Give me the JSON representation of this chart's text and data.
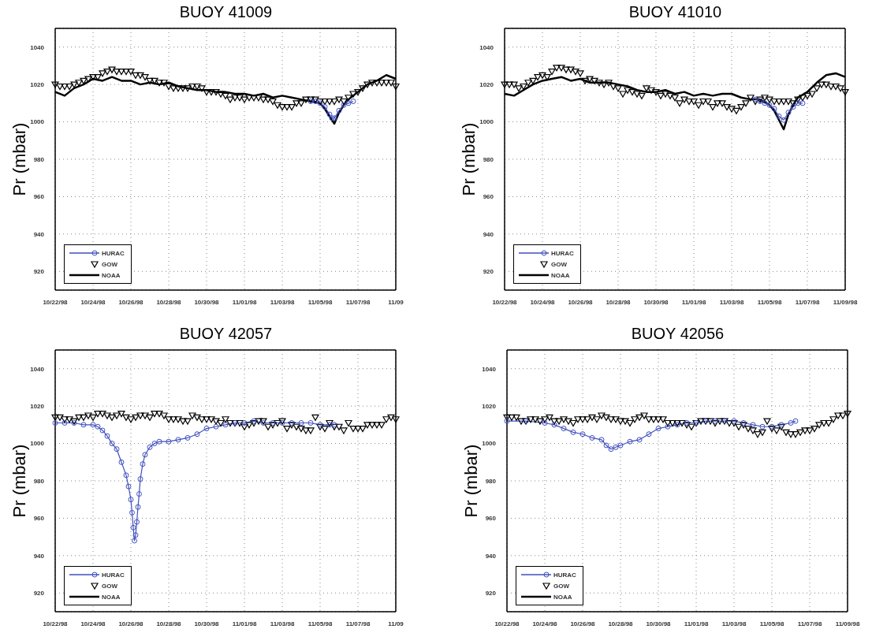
{
  "chart_data": [
    {
      "type": "line",
      "title": "BUOY 41009",
      "ylabel": "Pr (mbar)",
      "grid": true,
      "legend": "bottom left",
      "ylim": [
        910,
        1050
      ],
      "yticks": [
        920,
        940,
        960,
        980,
        1000,
        1020,
        1040
      ],
      "xlim": [
        "1998-10-22",
        "1998-11-09"
      ],
      "xticks": [
        {
          "value": "1998-10-22",
          "label": "10/22/98"
        },
        {
          "value": "1998-10-24",
          "label": "10/24/98"
        },
        {
          "value": "1998-10-26",
          "label": "10/26/98"
        },
        {
          "value": "1998-10-28",
          "label": "10/28/98"
        },
        {
          "value": "1998-10-30",
          "label": "10/30/98"
        },
        {
          "value": "1998-11-01",
          "label": "11/01/98"
        },
        {
          "value": "1998-11-03",
          "label": "11/03/98"
        },
        {
          "value": "1998-11-05",
          "label": "11/05/98"
        },
        {
          "value": "1998-11-07",
          "label": "11/07/98"
        },
        {
          "value": "1998-11-09",
          "label": "11/09"
        }
      ],
      "x": [
        "1998-10-22T00:00",
        "1998-10-22T06:00",
        "1998-10-22T12:00",
        "1998-10-22T18:00",
        "1998-10-23T00:00",
        "1998-10-23T06:00",
        "1998-10-23T12:00",
        "1998-10-23T18:00",
        "1998-10-24T00:00",
        "1998-10-24T06:00",
        "1998-10-24T12:00",
        "1998-10-24T18:00",
        "1998-10-25T00:00",
        "1998-10-25T06:00",
        "1998-10-25T12:00",
        "1998-10-25T18:00",
        "1998-10-26T00:00",
        "1998-10-26T06:00",
        "1998-10-26T12:00",
        "1998-10-26T18:00",
        "1998-10-27T00:00",
        "1998-10-27T06:00",
        "1998-10-27T12:00",
        "1998-10-27T18:00",
        "1998-10-28T00:00",
        "1998-10-28T06:00",
        "1998-10-28T12:00",
        "1998-10-28T18:00",
        "1998-10-29T00:00",
        "1998-10-29T06:00",
        "1998-10-29T12:00",
        "1998-10-29T18:00",
        "1998-10-30T00:00",
        "1998-10-30T06:00",
        "1998-10-30T12:00",
        "1998-10-30T18:00",
        "1998-10-31T00:00",
        "1998-10-31T06:00",
        "1998-10-31T12:00",
        "1998-10-31T18:00",
        "1998-11-01T00:00",
        "1998-11-01T06:00",
        "1998-11-01T12:00",
        "1998-11-01T18:00",
        "1998-11-02T00:00",
        "1998-11-02T06:00",
        "1998-11-02T12:00",
        "1998-11-02T18:00",
        "1998-11-03T00:00",
        "1998-11-03T06:00",
        "1998-11-03T12:00",
        "1998-11-03T18:00",
        "1998-11-04T00:00",
        "1998-11-04T06:00",
        "1998-11-04T12:00",
        "1998-11-04T18:00",
        "1998-11-05T00:00",
        "1998-11-05T06:00",
        "1998-11-05T12:00",
        "1998-11-05T18:00",
        "1998-11-06T00:00",
        "1998-11-06T06:00",
        "1998-11-06T12:00",
        "1998-11-06T18:00",
        "1998-11-07T00:00",
        "1998-11-07T06:00",
        "1998-11-07T12:00",
        "1998-11-07T18:00",
        "1998-11-08T00:00",
        "1998-11-08T06:00",
        "1998-11-08T12:00",
        "1998-11-08T18:00",
        "1998-11-09T00:00"
      ],
      "series": [
        {
          "name": "HURAC",
          "marker": "circle",
          "color": "#4050c0",
          "x": [
            "1998-11-04T12:00",
            "1998-11-04T18:00",
            "1998-11-05T00:00",
            "1998-11-05T06:00",
            "1998-11-05T12:00",
            "1998-11-05T15:00",
            "1998-11-05T18:00",
            "1998-11-06T00:00",
            "1998-11-06T06:00",
            "1998-11-06T12:00",
            "1998-11-06T18:00"
          ],
          "values": [
            1011,
            1011,
            1010,
            1008,
            1004,
            1002,
            1002,
            1006,
            1009,
            1010,
            1011
          ]
        },
        {
          "name": "GOW",
          "type": "scatter",
          "marker": "triangle",
          "color": "#000000",
          "values": [
            1020,
            1019,
            1019,
            1019,
            1020,
            1021,
            1022,
            1023,
            1024,
            1024,
            1026,
            1027,
            1028,
            1027,
            1027,
            1027,
            1027,
            1025,
            1025,
            1024,
            1022,
            1022,
            1021,
            1021,
            1019,
            1018,
            1018,
            1018,
            1018,
            1019,
            1019,
            1018,
            1016,
            1016,
            1016,
            1015,
            1014,
            1012,
            1013,
            1013,
            1012,
            1013,
            1013,
            1013,
            1012,
            1012,
            1011,
            1009,
            1008,
            1008,
            1008,
            1010,
            1010,
            1012,
            1012,
            1012,
            1011,
            1011,
            1011,
            1011,
            1012,
            1011,
            1013,
            1015,
            1016,
            1018,
            1020,
            1021,
            1021,
            1021,
            1021,
            1021,
            1019
          ]
        },
        {
          "name": "NOAA",
          "marker": "none",
          "color": "#000000",
          "x": [
            "1998-10-22T00:00",
            "1998-10-22T12:00",
            "1998-10-23T00:00",
            "1998-10-23T12:00",
            "1998-10-24T00:00",
            "1998-10-24T12:00",
            "1998-10-25T00:00",
            "1998-10-25T12:00",
            "1998-10-26T00:00",
            "1998-10-26T12:00",
            "1998-10-27T00:00",
            "1998-10-27T12:00",
            "1998-10-28T00:00",
            "1998-10-28T12:00",
            "1998-10-29T00:00",
            "1998-10-29T12:00",
            "1998-10-30T00:00",
            "1998-10-30T12:00",
            "1998-10-31T00:00",
            "1998-10-31T12:00",
            "1998-11-01T00:00",
            "1998-11-01T12:00",
            "1998-11-02T00:00",
            "1998-11-02T12:00",
            "1998-11-03T00:00",
            "1998-11-03T12:00",
            "1998-11-04T00:00",
            "1998-11-04T12:00",
            "1998-11-05T00:00",
            "1998-11-05T06:00",
            "1998-11-05T12:00",
            "1998-11-05T18:00",
            "1998-11-06T00:00",
            "1998-11-06T06:00",
            "1998-11-06T12:00",
            "1998-11-07T00:00",
            "1998-11-07T12:00",
            "1998-11-08T00:00",
            "1998-11-08T12:00",
            "1998-11-09T00:00"
          ],
          "values": [
            1016,
            1014,
            1018,
            1020,
            1023,
            1022,
            1024,
            1022,
            1022,
            1020,
            1021,
            1020,
            1021,
            1019,
            1018,
            1017,
            1017,
            1016,
            1016,
            1015,
            1015,
            1014,
            1015,
            1013,
            1014,
            1013,
            1012,
            1011,
            1010,
            1007,
            1003,
            999,
            1005,
            1009,
            1012,
            1016,
            1020,
            1022,
            1025,
            1023
          ]
        }
      ]
    },
    {
      "type": "line",
      "title": "BUOY 41010",
      "ylabel": "Pr (mbar)",
      "grid": true,
      "legend": "bottom left",
      "ylim": [
        910,
        1050
      ],
      "yticks": [
        920,
        940,
        960,
        980,
        1000,
        1020,
        1040
      ],
      "xlim": [
        "1998-10-22",
        "1998-11-09"
      ],
      "xticks": [
        {
          "value": "1998-10-22",
          "label": "10/22/98"
        },
        {
          "value": "1998-10-24",
          "label": "10/24/98"
        },
        {
          "value": "1998-10-26",
          "label": "10/26/98"
        },
        {
          "value": "1998-10-28",
          "label": "10/28/98"
        },
        {
          "value": "1998-10-30",
          "label": "10/30/98"
        },
        {
          "value": "1998-11-01",
          "label": "11/01/98"
        },
        {
          "value": "1998-11-03",
          "label": "11/03/98"
        },
        {
          "value": "1998-11-05",
          "label": "11/05/98"
        },
        {
          "value": "1998-11-07",
          "label": "11/07/98"
        },
        {
          "value": "1998-11-09",
          "label": "11/09/98"
        }
      ],
      "x": [
        "1998-10-22T00:00",
        "1998-10-22T06:00",
        "1998-10-22T12:00",
        "1998-10-22T18:00",
        "1998-10-23T00:00",
        "1998-10-23T06:00",
        "1998-10-23T12:00",
        "1998-10-23T18:00",
        "1998-10-24T00:00",
        "1998-10-24T06:00",
        "1998-10-24T12:00",
        "1998-10-24T18:00",
        "1998-10-25T00:00",
        "1998-10-25T06:00",
        "1998-10-25T12:00",
        "1998-10-25T18:00",
        "1998-10-26T00:00",
        "1998-10-26T06:00",
        "1998-10-26T12:00",
        "1998-10-26T18:00",
        "1998-10-27T00:00",
        "1998-10-27T06:00",
        "1998-10-27T12:00",
        "1998-10-27T18:00",
        "1998-10-28T00:00",
        "1998-10-28T06:00",
        "1998-10-28T12:00",
        "1998-10-28T18:00",
        "1998-10-29T00:00",
        "1998-10-29T06:00",
        "1998-10-29T12:00",
        "1998-10-29T18:00",
        "1998-10-30T00:00",
        "1998-10-30T06:00",
        "1998-10-30T12:00",
        "1998-10-30T18:00",
        "1998-10-31T00:00",
        "1998-10-31T06:00",
        "1998-10-31T12:00",
        "1998-10-31T18:00",
        "1998-11-01T00:00",
        "1998-11-01T06:00",
        "1998-11-01T12:00",
        "1998-11-01T18:00",
        "1998-11-02T00:00",
        "1998-11-02T06:00",
        "1998-11-02T12:00",
        "1998-11-02T18:00",
        "1998-11-03T00:00",
        "1998-11-03T06:00",
        "1998-11-03T12:00",
        "1998-11-03T18:00",
        "1998-11-04T00:00",
        "1998-11-04T06:00",
        "1998-11-04T12:00",
        "1998-11-04T18:00",
        "1998-11-05T00:00",
        "1998-11-05T06:00",
        "1998-11-05T12:00",
        "1998-11-05T18:00",
        "1998-11-06T00:00",
        "1998-11-06T06:00",
        "1998-11-06T12:00",
        "1998-11-06T18:00",
        "1998-11-07T00:00",
        "1998-11-07T06:00",
        "1998-11-07T12:00",
        "1998-11-07T18:00",
        "1998-11-08T00:00",
        "1998-11-08T06:00",
        "1998-11-08T12:00",
        "1998-11-08T18:00",
        "1998-11-09T00:00"
      ],
      "series": [
        {
          "name": "HURAC",
          "marker": "circle",
          "color": "#4050c0",
          "x": [
            "1998-11-04T06:00",
            "1998-11-04T12:00",
            "1998-11-04T18:00",
            "1998-11-05T00:00",
            "1998-11-05T06:00",
            "1998-11-05T12:00",
            "1998-11-05T18:00",
            "1998-11-06T00:00",
            "1998-11-06T06:00",
            "1998-11-06T12:00",
            "1998-11-06T18:00"
          ],
          "values": [
            1012,
            1011,
            1010,
            1009,
            1007,
            1003,
            1001,
            1005,
            1008,
            1010,
            1010
          ]
        },
        {
          "name": "GOW",
          "type": "scatter",
          "marker": "triangle",
          "color": "#000000",
          "values": [
            1020,
            1020,
            1020,
            1018,
            1019,
            1021,
            1022,
            1024,
            1025,
            1024,
            1027,
            1029,
            1029,
            1028,
            1028,
            1027,
            1026,
            1022,
            1023,
            1022,
            1021,
            1020,
            1021,
            1019,
            1018,
            1015,
            1017,
            1016,
            1015,
            1014,
            1018,
            1017,
            1016,
            1014,
            1015,
            1014,
            1013,
            1010,
            1012,
            1011,
            1011,
            1009,
            1011,
            1011,
            1008,
            1010,
            1010,
            1008,
            1007,
            1006,
            1008,
            1010,
            1013,
            1011,
            1012,
            1013,
            1012,
            1011,
            1011,
            1011,
            1011,
            1010,
            1012,
            1013,
            1014,
            1015,
            1018,
            1020,
            1020,
            1019,
            1019,
            1018,
            1016
          ]
        },
        {
          "name": "NOAA",
          "marker": "none",
          "color": "#000000",
          "x": [
            "1998-10-22T00:00",
            "1998-10-22T12:00",
            "1998-10-23T00:00",
            "1998-10-23T12:00",
            "1998-10-24T00:00",
            "1998-10-24T12:00",
            "1998-10-25T00:00",
            "1998-10-25T12:00",
            "1998-10-26T00:00",
            "1998-10-26T12:00",
            "1998-10-27T00:00",
            "1998-10-27T12:00",
            "1998-10-28T00:00",
            "1998-10-28T12:00",
            "1998-10-29T00:00",
            "1998-10-29T12:00",
            "1998-10-30T00:00",
            "1998-10-30T12:00",
            "1998-10-31T00:00",
            "1998-10-31T12:00",
            "1998-11-01T00:00",
            "1998-11-01T12:00",
            "1998-11-02T00:00",
            "1998-11-02T12:00",
            "1998-11-03T00:00",
            "1998-11-03T12:00",
            "1998-11-04T00:00",
            "1998-11-04T12:00",
            "1998-11-05T00:00",
            "1998-11-05T06:00",
            "1998-11-05T12:00",
            "1998-11-05T18:00",
            "1998-11-06T00:00",
            "1998-11-06T06:00",
            "1998-11-06T12:00",
            "1998-11-07T00:00",
            "1998-11-07T12:00",
            "1998-11-08T00:00",
            "1998-11-08T12:00",
            "1998-11-09T00:00"
          ],
          "values": [
            1015,
            1014,
            1017,
            1020,
            1022,
            1023,
            1024,
            1022,
            1023,
            1021,
            1021,
            1021,
            1020,
            1019,
            1017,
            1016,
            1016,
            1017,
            1015,
            1016,
            1014,
            1015,
            1014,
            1015,
            1015,
            1013,
            1012,
            1012,
            1009,
            1006,
            1001,
            996,
            1004,
            1009,
            1013,
            1016,
            1021,
            1025,
            1026,
            1024
          ]
        }
      ]
    },
    {
      "type": "line",
      "title": "BUOY 42057",
      "ylabel": "Pr (mbar)",
      "grid": true,
      "legend": "bottom left",
      "ylim": [
        910,
        1050
      ],
      "yticks": [
        920,
        940,
        960,
        980,
        1000,
        1020,
        1040
      ],
      "xlim": [
        "1998-10-22",
        "1998-11-09"
      ],
      "xticks": [
        {
          "value": "1998-10-22",
          "label": "10/22/98"
        },
        {
          "value": "1998-10-24",
          "label": "10/24/98"
        },
        {
          "value": "1998-10-26",
          "label": "10/26/98"
        },
        {
          "value": "1998-10-28",
          "label": "10/28/98"
        },
        {
          "value": "1998-10-30",
          "label": "10/30/98"
        },
        {
          "value": "1998-11-01",
          "label": "11/01/98"
        },
        {
          "value": "1998-11-03",
          "label": "11/03/98"
        },
        {
          "value": "1998-11-05",
          "label": "11/05/98"
        },
        {
          "value": "1998-11-07",
          "label": "11/07/98"
        },
        {
          "value": "1998-11-09",
          "label": "11/09"
        }
      ],
      "x": [
        "1998-10-22T00:00",
        "1998-10-22T06:00",
        "1998-10-22T12:00",
        "1998-10-22T18:00",
        "1998-10-23T00:00",
        "1998-10-23T06:00",
        "1998-10-23T12:00",
        "1998-10-23T18:00",
        "1998-10-24T00:00",
        "1998-10-24T06:00",
        "1998-10-24T12:00",
        "1998-10-24T18:00",
        "1998-10-25T00:00",
        "1998-10-25T06:00",
        "1998-10-25T12:00",
        "1998-10-25T18:00",
        "1998-10-26T00:00",
        "1998-10-26T06:00",
        "1998-10-26T12:00",
        "1998-10-26T18:00",
        "1998-10-27T00:00",
        "1998-10-27T06:00",
        "1998-10-27T12:00",
        "1998-10-27T18:00",
        "1998-10-28T00:00",
        "1998-10-28T06:00",
        "1998-10-28T12:00",
        "1998-10-28T18:00",
        "1998-10-29T00:00",
        "1998-10-29T06:00",
        "1998-10-29T12:00",
        "1998-10-29T18:00",
        "1998-10-30T00:00",
        "1998-10-30T06:00",
        "1998-10-30T12:00",
        "1998-10-30T18:00",
        "1998-10-31T00:00",
        "1998-10-31T06:00",
        "1998-10-31T12:00",
        "1998-10-31T18:00",
        "1998-11-01T00:00",
        "1998-11-01T06:00",
        "1998-11-01T12:00",
        "1998-11-01T18:00",
        "1998-11-02T00:00",
        "1998-11-02T06:00",
        "1998-11-02T12:00",
        "1998-11-02T18:00",
        "1998-11-03T00:00",
        "1998-11-03T06:00",
        "1998-11-03T12:00",
        "1998-11-03T18:00",
        "1998-11-04T00:00",
        "1998-11-04T06:00",
        "1998-11-04T12:00",
        "1998-11-04T18:00",
        "1998-11-05T00:00",
        "1998-11-05T06:00",
        "1998-11-05T12:00",
        "1998-11-05T18:00",
        "1998-11-06T00:00",
        "1998-11-06T06:00",
        "1998-11-06T12:00",
        "1998-11-06T18:00",
        "1998-11-07T00:00",
        "1998-11-07T06:00",
        "1998-11-07T12:00",
        "1998-11-07T18:00",
        "1998-11-08T00:00",
        "1998-11-08T06:00",
        "1998-11-08T12:00",
        "1998-11-08T18:00",
        "1998-11-09T00:00"
      ],
      "series": [
        {
          "name": "HURAC",
          "marker": "circle",
          "color": "#4050c0",
          "x": [
            "1998-10-22T00:00",
            "1998-10-22T12:00",
            "1998-10-23T00:00",
            "1998-10-23T12:00",
            "1998-10-24T00:00",
            "1998-10-24T06:00",
            "1998-10-24T12:00",
            "1998-10-24T18:00",
            "1998-10-25T00:00",
            "1998-10-25T06:00",
            "1998-10-25T12:00",
            "1998-10-25T18:00",
            "1998-10-25T21:00",
            "1998-10-26T00:00",
            "1998-10-26T01:30",
            "1998-10-26T03:00",
            "1998-10-26T04:30",
            "1998-10-26T06:00",
            "1998-10-26T07:30",
            "1998-10-26T09:00",
            "1998-10-26T10:30",
            "1998-10-26T12:00",
            "1998-10-26T15:00",
            "1998-10-26T18:00",
            "1998-10-27T00:00",
            "1998-10-27T06:00",
            "1998-10-27T12:00",
            "1998-10-28T00:00",
            "1998-10-28T12:00",
            "1998-10-29T00:00",
            "1998-10-29T12:00",
            "1998-10-30T00:00",
            "1998-10-30T12:00",
            "1998-10-31T00:00",
            "1998-10-31T12:00",
            "1998-11-01T00:00",
            "1998-11-01T12:00",
            "1998-11-02T00:00",
            "1998-11-02T12:00",
            "1998-11-03T00:00",
            "1998-11-03T12:00",
            "1998-11-04T00:00",
            "1998-11-04T12:00",
            "1998-11-05T00:00",
            "1998-11-05T12:00",
            "1998-11-05T18:00"
          ],
          "values": [
            1011,
            1011,
            1011,
            1010,
            1010,
            1009,
            1007,
            1004,
            1000,
            997,
            990,
            983,
            977,
            970,
            963,
            955,
            948,
            951,
            958,
            966,
            973,
            981,
            989,
            994,
            998,
            1000,
            1001,
            1001,
            1002,
            1003,
            1005,
            1008,
            1009,
            1010,
            1011,
            1011,
            1012,
            1011,
            1011,
            1011,
            1011,
            1011,
            1011,
            1010,
            1010,
            1010
          ]
        },
        {
          "name": "GOW",
          "type": "scatter",
          "marker": "triangle",
          "color": "#000000",
          "values": [
            1014,
            1014,
            1013,
            1013,
            1012,
            1014,
            1014,
            1015,
            1014,
            1016,
            1016,
            1015,
            1014,
            1015,
            1016,
            1014,
            1013,
            1014,
            1015,
            1015,
            1014,
            1016,
            1016,
            1015,
            1013,
            1013,
            1013,
            1012,
            1012,
            1015,
            1014,
            1013,
            1013,
            1013,
            1012,
            1011,
            1013,
            1011,
            1011,
            1011,
            1009,
            1010,
            1011,
            1012,
            1012,
            1009,
            1010,
            1011,
            1012,
            1008,
            1010,
            1009,
            1008,
            1007,
            1007,
            1014,
            1009,
            1008,
            1011,
            1009,
            1009,
            1007,
            1011,
            1008,
            1008,
            1008,
            1010,
            1010,
            1010,
            1010,
            1013,
            1014,
            1013
          ]
        },
        {
          "name": "NOAA",
          "marker": "none",
          "color": "#000000",
          "values": [
            null,
            null,
            null,
            null,
            null,
            null,
            null,
            null,
            null,
            null,
            null,
            null,
            null,
            null,
            null,
            null,
            null,
            null,
            null,
            null,
            null,
            null,
            null,
            null,
            null,
            null,
            null,
            null,
            null,
            null,
            null,
            null,
            null,
            null,
            null,
            null,
            null,
            null,
            null,
            null,
            null,
            null,
            null,
            null,
            null,
            null,
            null,
            null,
            null,
            null,
            null,
            null,
            null,
            null,
            null,
            null,
            null,
            null,
            null,
            null,
            null,
            null,
            null,
            null,
            null,
            null,
            null,
            null,
            null,
            null,
            null,
            null,
            null
          ]
        }
      ]
    },
    {
      "type": "line",
      "title": "BUOY 42056",
      "ylabel": "Pr (mbar)",
      "grid": true,
      "legend": "bottom left",
      "ylim": [
        910,
        1050
      ],
      "yticks": [
        920,
        940,
        960,
        980,
        1000,
        1020,
        1040
      ],
      "xlim": [
        "1998-10-22",
        "1998-11-09"
      ],
      "xticks": [
        {
          "value": "1998-10-22",
          "label": "10/22/98"
        },
        {
          "value": "1998-10-24",
          "label": "10/24/98"
        },
        {
          "value": "1998-10-26",
          "label": "10/26/98"
        },
        {
          "value": "1998-10-28",
          "label": "10/28/98"
        },
        {
          "value": "1998-10-30",
          "label": "10/30/98"
        },
        {
          "value": "1998-11-01",
          "label": "11/01/98"
        },
        {
          "value": "1998-11-03",
          "label": "11/03/98"
        },
        {
          "value": "1998-11-05",
          "label": "11/05/98"
        },
        {
          "value": "1998-11-07",
          "label": "11/07/98"
        },
        {
          "value": "1998-11-09",
          "label": "11/09/98"
        }
      ],
      "x": [
        "1998-10-22T00:00",
        "1998-10-22T06:00",
        "1998-10-22T12:00",
        "1998-10-22T18:00",
        "1998-10-23T00:00",
        "1998-10-23T06:00",
        "1998-10-23T12:00",
        "1998-10-23T18:00",
        "1998-10-24T00:00",
        "1998-10-24T06:00",
        "1998-10-24T12:00",
        "1998-10-24T18:00",
        "1998-10-25T00:00",
        "1998-10-25T06:00",
        "1998-10-25T12:00",
        "1998-10-25T18:00",
        "1998-10-26T00:00",
        "1998-10-26T06:00",
        "1998-10-26T12:00",
        "1998-10-26T18:00",
        "1998-10-27T00:00",
        "1998-10-27T06:00",
        "1998-10-27T12:00",
        "1998-10-27T18:00",
        "1998-10-28T00:00",
        "1998-10-28T06:00",
        "1998-10-28T12:00",
        "1998-10-28T18:00",
        "1998-10-29T00:00",
        "1998-10-29T06:00",
        "1998-10-29T12:00",
        "1998-10-29T18:00",
        "1998-10-30T00:00",
        "1998-10-30T06:00",
        "1998-10-30T12:00",
        "1998-10-30T18:00",
        "1998-10-31T00:00",
        "1998-10-31T06:00",
        "1998-10-31T12:00",
        "1998-10-31T18:00",
        "1998-11-01T00:00",
        "1998-11-01T06:00",
        "1998-11-01T12:00",
        "1998-11-01T18:00",
        "1998-11-02T00:00",
        "1998-11-02T06:00",
        "1998-11-02T12:00",
        "1998-11-02T18:00",
        "1998-11-03T00:00",
        "1998-11-03T06:00",
        "1998-11-03T12:00",
        "1998-11-03T18:00",
        "1998-11-04T00:00",
        "1998-11-04T06:00",
        "1998-11-04T12:00",
        "1998-11-04T18:00",
        "1998-11-05T00:00",
        "1998-11-05T06:00",
        "1998-11-05T12:00",
        "1998-11-05T18:00",
        "1998-11-06T00:00",
        "1998-11-06T06:00",
        "1998-11-06T12:00",
        "1998-11-06T18:00",
        "1998-11-07T00:00",
        "1998-11-07T06:00",
        "1998-11-07T12:00",
        "1998-11-07T18:00",
        "1998-11-08T00:00",
        "1998-11-08T06:00",
        "1998-11-08T12:00",
        "1998-11-08T18:00",
        "1998-11-09T00:00"
      ],
      "series": [
        {
          "name": "HURAC",
          "marker": "circle",
          "color": "#4050c0",
          "x": [
            "1998-10-22T00:00",
            "1998-10-23T00:00",
            "1998-10-24T00:00",
            "1998-10-24T12:00",
            "1998-10-25T00:00",
            "1998-10-25T12:00",
            "1998-10-26T00:00",
            "1998-10-26T12:00",
            "1998-10-27T00:00",
            "1998-10-27T06:00",
            "1998-10-27T12:00",
            "1998-10-27T18:00",
            "1998-10-28T00:00",
            "1998-10-28T12:00",
            "1998-10-29T00:00",
            "1998-10-29T12:00",
            "1998-10-30T00:00",
            "1998-10-30T12:00",
            "1998-10-31T00:00",
            "1998-10-31T12:00",
            "1998-11-01T00:00",
            "1998-11-01T12:00",
            "1998-11-02T00:00",
            "1998-11-02T12:00",
            "1998-11-03T00:00",
            "1998-11-03T12:00",
            "1998-11-04T00:00",
            "1998-11-04T12:00",
            "1998-11-05T00:00",
            "1998-11-05T12:00",
            "1998-11-06T00:00",
            "1998-11-06T06:00"
          ],
          "values": [
            1012,
            1012,
            1011,
            1010,
            1008,
            1006,
            1005,
            1003,
            1002,
            999,
            997,
            998,
            999,
            1001,
            1002,
            1005,
            1008,
            1009,
            1010,
            1011,
            1011,
            1012,
            1012,
            1012,
            1012,
            1011,
            1010,
            1009,
            1009,
            1010,
            1011,
            1012
          ]
        },
        {
          "name": "GOW",
          "type": "scatter",
          "marker": "triangle",
          "color": "#000000",
          "values": [
            1014,
            1014,
            1014,
            1012,
            1012,
            1013,
            1013,
            1012,
            1013,
            1014,
            1012,
            1012,
            1013,
            1012,
            1011,
            1013,
            1013,
            1013,
            1014,
            1013,
            1015,
            1014,
            1013,
            1013,
            1012,
            1012,
            1011,
            1013,
            1014,
            1015,
            1013,
            1013,
            1013,
            1013,
            1011,
            1011,
            1011,
            1011,
            1010,
            1009,
            1011,
            1012,
            1012,
            1012,
            1011,
            1012,
            1012,
            1011,
            1011,
            1009,
            1010,
            1008,
            1007,
            1005,
            1006,
            1012,
            1008,
            1007,
            1009,
            1006,
            1005,
            1005,
            1006,
            1007,
            1007,
            1008,
            1010,
            1011,
            1011,
            1013,
            1015,
            1015,
            1016
          ]
        },
        {
          "name": "NOAA",
          "marker": "none",
          "color": "#000000",
          "values": [
            null,
            null,
            null,
            null,
            null,
            null,
            null,
            null,
            null,
            null,
            null,
            null,
            null,
            null,
            null,
            null,
            null,
            null,
            null,
            null,
            null,
            null,
            null,
            null,
            null,
            null,
            null,
            null,
            null,
            null,
            null,
            null,
            null,
            null,
            null,
            null,
            null,
            null,
            null,
            null,
            null,
            null,
            null,
            null,
            null,
            null,
            null,
            null,
            null,
            null,
            null,
            null,
            null,
            null,
            null,
            null,
            null,
            null,
            null,
            null,
            null,
            null,
            null,
            null,
            null,
            null,
            null,
            null,
            null,
            null,
            null,
            null,
            null
          ]
        }
      ]
    }
  ]
}
